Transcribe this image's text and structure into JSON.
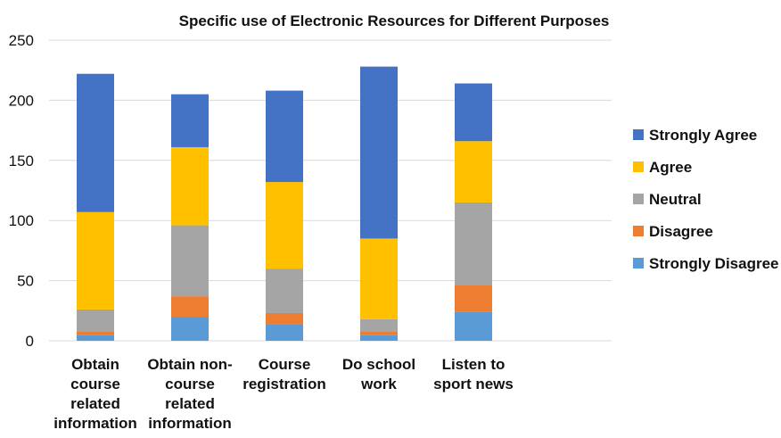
{
  "chart_data": {
    "type": "bar",
    "stacked": true,
    "title": "Specific use of Electronic Resources for Different Purposes",
    "xlabel": "",
    "ylabel": "",
    "ylim": [
      0,
      250
    ],
    "yticks": [
      "0",
      "50",
      "100",
      "150",
      "200",
      "250"
    ],
    "grid": true,
    "legend_position": "right",
    "categories": [
      [
        "Obtain",
        "course",
        "related",
        "information"
      ],
      [
        "Obtain non-",
        "course",
        "related",
        "information"
      ],
      [
        "Course",
        "registration"
      ],
      [
        "Do school",
        "work"
      ],
      [
        "Listen to",
        "sport news"
      ]
    ],
    "series": [
      {
        "name": "Strongly Disagree",
        "color": "#5b9bd5",
        "values": [
          5,
          20,
          14,
          5,
          24
        ]
      },
      {
        "name": "Disagree",
        "color": "#ed7d31",
        "values": [
          3,
          17,
          9,
          3,
          22
        ]
      },
      {
        "name": "Neutral",
        "color": "#a5a5a5",
        "values": [
          18,
          59,
          37,
          10,
          69
        ]
      },
      {
        "name": "Agree",
        "color": "#ffc000",
        "values": [
          81,
          65,
          72,
          67,
          51
        ]
      },
      {
        "name": "Strongly Agree",
        "color": "#4472c4",
        "values": [
          115,
          44,
          76,
          143,
          48
        ]
      }
    ]
  }
}
